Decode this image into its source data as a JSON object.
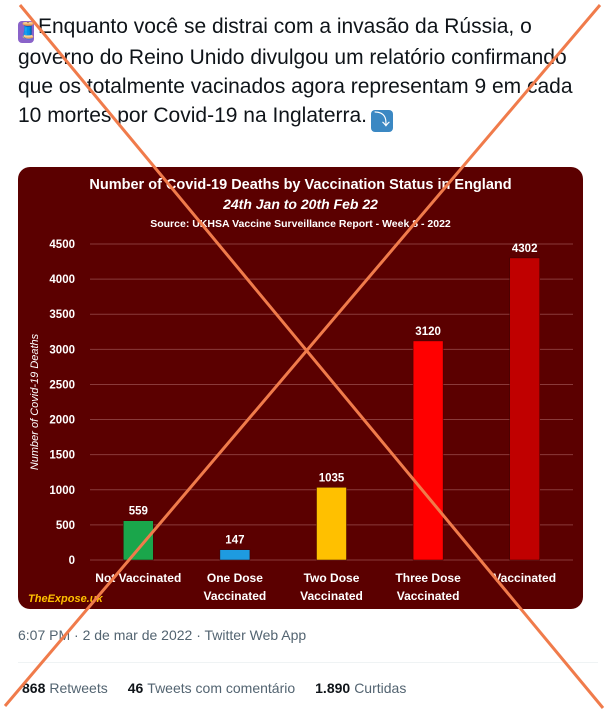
{
  "tweet": {
    "thread_emoji": "🧵",
    "text": "Enquanto você se distrai com a invasão da Rússia, o governo do Reino Unido divulgou um relatório confirmando que os totalmente vacinados agora representam 9 em cada 10 mortes por Covid-19 na Inglaterra.",
    "arrow_emoji": "⤵",
    "timestamp": "6:07 PM · 2 de mar de 2022 · Twitter Web App"
  },
  "stats": {
    "retweets_count": "868",
    "retweets_label": "Retweets",
    "quotes_count": "46",
    "quotes_label": "Tweets com comentário",
    "likes_count": "1.890",
    "likes_label": "Curtidas"
  },
  "chart_data": {
    "type": "bar",
    "title": "Number of Covid-19 Deaths by Vaccination Status in England",
    "subtitle": "24th Jan to 20th Feb 22",
    "source": "Source: UKHSA Vaccine Surveillance Report - Week 8 - 2022",
    "ylabel": "Number of Covid-19 Deaths",
    "ylim": [
      0,
      4500
    ],
    "yticks": [
      "0",
      "500",
      "1000",
      "1500",
      "2000",
      "2500",
      "3000",
      "3500",
      "4000",
      "4500"
    ],
    "grid": true,
    "categories": [
      [
        "Not Vaccinated"
      ],
      [
        "One Dose",
        "Vaccinated"
      ],
      [
        "Two Dose",
        "Vaccinated"
      ],
      [
        "Three Dose",
        "Vaccinated"
      ],
      [
        "Vaccinated"
      ]
    ],
    "values": [
      559,
      147,
      1035,
      3120,
      4302
    ],
    "value_labels": [
      "559",
      "147",
      "1035",
      "3120",
      "4302"
    ],
    "colors": [
      "#1aa64b",
      "#1e9be0",
      "#ffc000",
      "#ff0000",
      "#c00000"
    ],
    "watermark": "TheExpose.uk"
  },
  "overlay": {
    "cross_color": "#f07b4b"
  }
}
